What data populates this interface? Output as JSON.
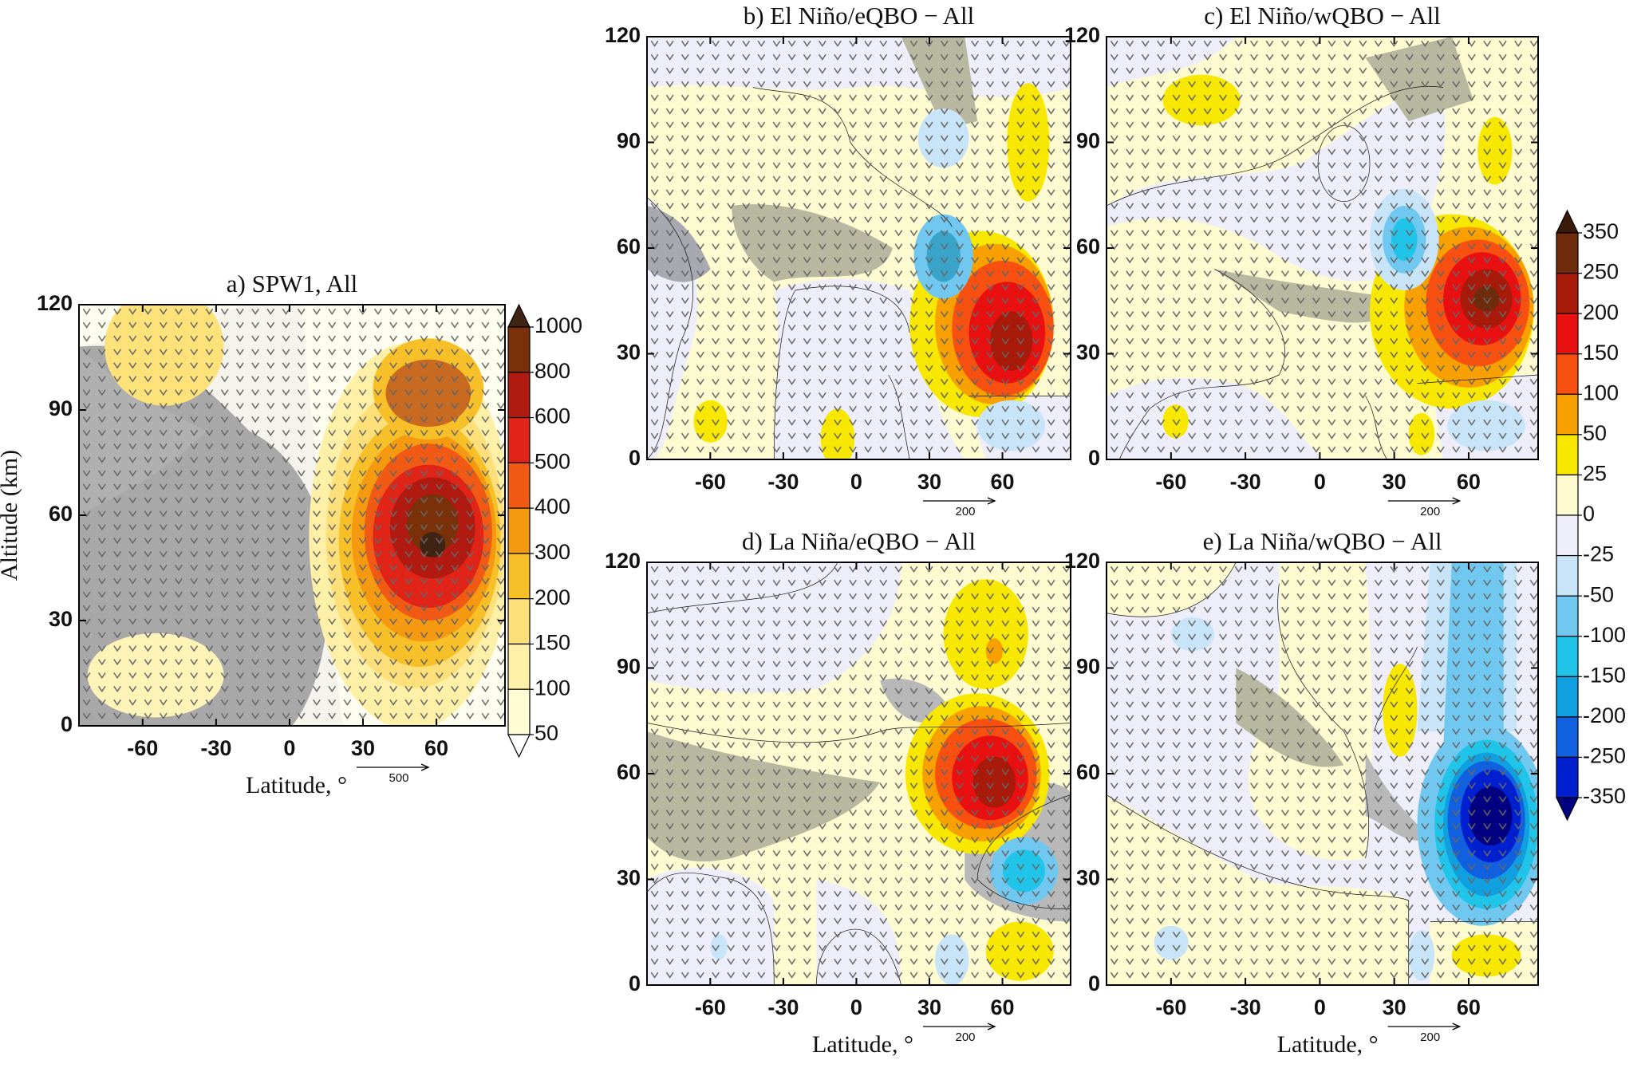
{
  "chart_data": [
    {
      "type": "contour",
      "title": "a)  SPW1, All",
      "xlabel": "Latitude, °",
      "ylabel": "Altitude (km)",
      "xlim": [
        -86,
        88
      ],
      "ylim": [
        0,
        120
      ],
      "xticks": [
        -60,
        -30,
        0,
        30,
        60
      ],
      "yticks": [
        0,
        30,
        60,
        90,
        120
      ],
      "vector_label": "500"
    },
    {
      "type": "contour",
      "title": "b)  El Niño/eQBO − All",
      "xlim": [
        -86,
        88
      ],
      "ylim": [
        0,
        120
      ],
      "xticks": [
        -60,
        -30,
        0,
        30,
        60
      ],
      "yticks": [
        0,
        30,
        60,
        90,
        120
      ],
      "vector_label": "200"
    },
    {
      "type": "contour",
      "title": "c)  El Niño/wQBO − All",
      "xlim": [
        -86,
        88
      ],
      "ylim": [
        0,
        120
      ],
      "xticks": [
        -60,
        -30,
        0,
        30,
        60
      ],
      "yticks": [
        0,
        30,
        60,
        90,
        120
      ],
      "vector_label": "200"
    },
    {
      "type": "contour",
      "title": "d)  La Niña/eQBO − All",
      "xlabel": "Latitude, °",
      "xlim": [
        -86,
        88
      ],
      "ylim": [
        0,
        120
      ],
      "xticks": [
        -60,
        -30,
        0,
        30,
        60
      ],
      "yticks": [
        0,
        30,
        60,
        90,
        120
      ],
      "vector_label": "200"
    },
    {
      "type": "contour",
      "title": "e)  La Niña/wQBO − All",
      "xlabel": "Latitude, °",
      "xlim": [
        -86,
        88
      ],
      "ylim": [
        0,
        120
      ],
      "xticks": [
        -60,
        -30,
        0,
        30,
        60
      ],
      "yticks": [
        0,
        30,
        60,
        90,
        120
      ],
      "vector_label": "200"
    }
  ],
  "colorbars": [
    {
      "levels": [
        1000,
        800,
        600,
        500,
        400,
        300,
        200,
        150,
        100,
        50
      ],
      "colors": [
        "#3f2414",
        "#7a3008",
        "#b01a10",
        "#e02418",
        "#f05a14",
        "#f59a10",
        "#f8c028",
        "#fde07a",
        "#fff0a8",
        "#fffbd4",
        "#ffffff"
      ]
    },
    {
      "levels": [
        350,
        250,
        200,
        150,
        100,
        50,
        25,
        0,
        -25,
        -50,
        -100,
        -150,
        -200,
        -250,
        -350
      ],
      "colors": [
        "#3a1a08",
        "#6e2c0c",
        "#a81a0a",
        "#e81010",
        "#f85010",
        "#f8a000",
        "#f8e800",
        "#fffbd0",
        "#eeeefa",
        "#c8e4f8",
        "#70c8f0",
        "#20c4e8",
        "#10a0e0",
        "#1060e0",
        "#0020d0",
        "#000080"
      ]
    }
  ]
}
